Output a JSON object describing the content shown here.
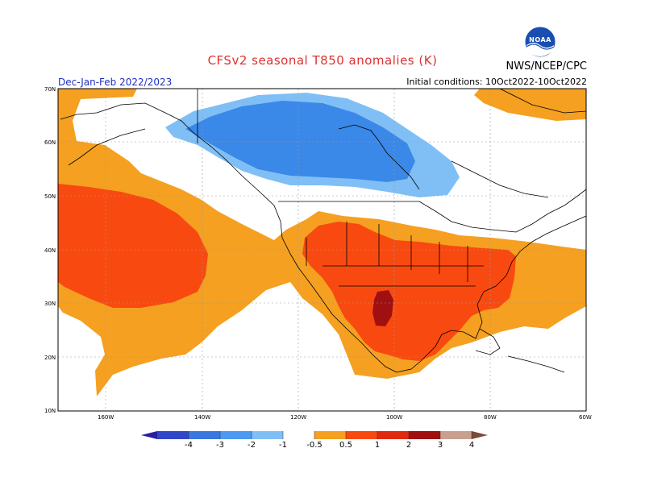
{
  "header": {
    "title": "CFSv2 seasonal T850 anomalies (K)",
    "season": "Dec-Jan-Feb 2022/2023",
    "initial_conditions": "Initial conditions: 10Oct2022-10Oct2022",
    "organization": "NWS/NCEP/CPC",
    "logo_text": "NOAA"
  },
  "map": {
    "lat_labels": [
      "70N",
      "60N",
      "50N",
      "40N",
      "30N",
      "20N",
      "10N"
    ],
    "lon_labels": [
      "160W",
      "140W",
      "120W",
      "100W",
      "80W",
      "60W"
    ]
  },
  "legend": {
    "labels": [
      "-4",
      "-3",
      "-2",
      "-1",
      "-0.5",
      "0.5",
      "1",
      "2",
      "3",
      "4"
    ],
    "colors": [
      "#2b1fa0",
      "#3048c8",
      "#3a78e0",
      "#4d9af0",
      "#80bff5",
      "#ffffff",
      "#f5a020",
      "#f84a10",
      "#e02a10",
      "#a01010",
      "#c8a090",
      "#7a4a3a"
    ]
  }
}
